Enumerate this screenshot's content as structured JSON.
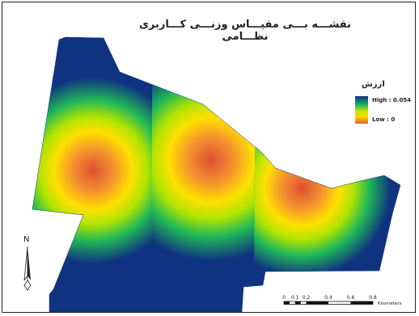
{
  "map": {
    "title": "نقشـــه بـــی مقیـــاس وزنـــی کـــاربری نظـــامی",
    "legend": {
      "title": "ارزش",
      "high_label": "High : 0.054",
      "low_label": "Low : 0",
      "high_value": 0.054,
      "low_value": 0,
      "ramp_colors": [
        "#0f3380",
        "#18b060",
        "#c8e800",
        "#ffd400",
        "#e06030"
      ]
    },
    "north_arrow": {
      "label": "N"
    },
    "scale_bar": {
      "ticks": [
        "0",
        "0.1",
        "0.2",
        "0.4",
        "0.6",
        "0.8"
      ],
      "unit": "Kilometers"
    }
  }
}
